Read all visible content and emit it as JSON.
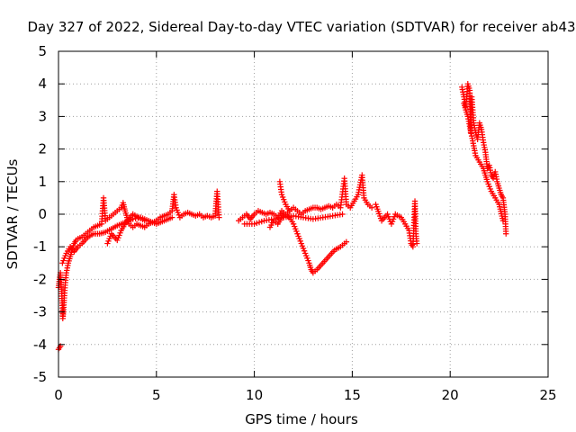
{
  "chart_data": {
    "type": "scatter",
    "title": "Day 327 of 2022, Sidereal Day-to-day VTEC variation (SDTVAR) for receiver ab43",
    "xlabel": "GPS time / hours",
    "ylabel": "SDTVAR / TECUs",
    "xlim": [
      0,
      25
    ],
    "ylim": [
      -5,
      5
    ],
    "xticks": [
      0,
      5,
      10,
      15,
      20,
      25
    ],
    "yticks": [
      -5,
      -4,
      -3,
      -2,
      -1,
      0,
      1,
      2,
      3,
      4,
      5
    ],
    "grid": true,
    "marker": "+",
    "series": [
      {
        "name": "SDTVAR",
        "color": "#ff0000",
        "segments": [
          [
            [
              0.0,
              -4.15
            ],
            [
              0.05,
              -4.1
            ],
            [
              0.1,
              -4.05
            ]
          ],
          [
            [
              0.0,
              -2.25
            ],
            [
              0.05,
              -2.0
            ],
            [
              0.1,
              -1.8
            ],
            [
              0.15,
              -2.3
            ],
            [
              0.2,
              -2.8
            ],
            [
              0.22,
              -3.2
            ],
            [
              0.25,
              -3.0
            ],
            [
              0.3,
              -2.5
            ],
            [
              0.35,
              -2.1
            ],
            [
              0.4,
              -1.8
            ],
            [
              0.5,
              -1.5
            ],
            [
              0.6,
              -1.3
            ],
            [
              0.7,
              -1.1
            ],
            [
              0.8,
              -0.9
            ],
            [
              0.9,
              -0.8
            ],
            [
              1.0,
              -0.75
            ],
            [
              1.2,
              -0.7
            ],
            [
              1.4,
              -0.6
            ],
            [
              1.6,
              -0.5
            ],
            [
              1.8,
              -0.4
            ],
            [
              2.0,
              -0.35
            ],
            [
              2.2,
              -0.3
            ],
            [
              2.3,
              0.5
            ],
            [
              2.4,
              -0.2
            ],
            [
              2.6,
              -0.1
            ],
            [
              2.8,
              0.0
            ],
            [
              3.0,
              0.1
            ],
            [
              3.2,
              0.2
            ],
            [
              3.3,
              0.35
            ],
            [
              3.4,
              0.1
            ],
            [
              3.6,
              -0.3
            ],
            [
              3.8,
              -0.4
            ],
            [
              4.0,
              -0.3
            ],
            [
              4.2,
              -0.35
            ],
            [
              4.4,
              -0.4
            ],
            [
              4.6,
              -0.3
            ],
            [
              4.8,
              -0.25
            ],
            [
              5.0,
              -0.2
            ],
            [
              5.2,
              -0.1
            ],
            [
              5.4,
              -0.05
            ],
            [
              5.6,
              0.0
            ],
            [
              5.8,
              0.1
            ],
            [
              5.9,
              0.6
            ],
            [
              6.0,
              0.2
            ],
            [
              6.2,
              -0.1
            ],
            [
              6.4,
              0.0
            ],
            [
              6.6,
              0.05
            ],
            [
              6.8,
              0.0
            ],
            [
              7.0,
              -0.05
            ],
            [
              7.2,
              0.0
            ],
            [
              7.4,
              -0.1
            ],
            [
              7.6,
              -0.05
            ],
            [
              7.8,
              -0.1
            ],
            [
              8.0,
              -0.05
            ],
            [
              8.1,
              0.7
            ],
            [
              8.2,
              -0.1
            ]
          ],
          [
            [
              0.2,
              -1.5
            ],
            [
              0.4,
              -1.2
            ],
            [
              0.6,
              -1.0
            ],
            [
              0.8,
              -1.15
            ],
            [
              1.0,
              -1.0
            ],
            [
              1.2,
              -0.9
            ],
            [
              1.5,
              -0.7
            ],
            [
              1.8,
              -0.6
            ],
            [
              2.1,
              -0.6
            ],
            [
              2.4,
              -0.55
            ],
            [
              2.7,
              -0.45
            ],
            [
              3.0,
              -0.35
            ],
            [
              3.4,
              -0.25
            ],
            [
              3.8,
              -0.15
            ],
            [
              4.2,
              -0.1
            ],
            [
              4.6,
              -0.2
            ],
            [
              5.0,
              -0.3
            ],
            [
              5.4,
              -0.2
            ],
            [
              5.8,
              -0.1
            ]
          ],
          [
            [
              2.5,
              -0.9
            ],
            [
              2.7,
              -0.6
            ],
            [
              3.0,
              -0.8
            ],
            [
              3.2,
              -0.5
            ],
            [
              3.5,
              -0.2
            ],
            [
              3.8,
              0.0
            ],
            [
              4.1,
              -0.1
            ],
            [
              4.4,
              -0.2
            ]
          ],
          [
            [
              9.2,
              -0.2
            ],
            [
              9.4,
              -0.1
            ],
            [
              9.6,
              0.0
            ],
            [
              9.8,
              -0.15
            ],
            [
              10.0,
              0.0
            ],
            [
              10.2,
              0.1
            ],
            [
              10.4,
              0.05
            ],
            [
              10.6,
              0.0
            ],
            [
              10.8,
              0.05
            ],
            [
              11.0,
              0.0
            ],
            [
              11.2,
              -0.1
            ],
            [
              11.4,
              0.1
            ],
            [
              11.6,
              0.0
            ],
            [
              11.8,
              0.1
            ],
            [
              12.0,
              0.2
            ],
            [
              12.2,
              0.1
            ],
            [
              12.4,
              0.0
            ],
            [
              12.6,
              0.1
            ],
            [
              12.8,
              0.15
            ],
            [
              13.0,
              0.2
            ],
            [
              13.2,
              0.2
            ],
            [
              13.4,
              0.15
            ],
            [
              13.6,
              0.2
            ],
            [
              13.8,
              0.25
            ],
            [
              14.0,
              0.2
            ],
            [
              14.2,
              0.3
            ],
            [
              14.4,
              0.2
            ],
            [
              14.6,
              1.1
            ],
            [
              14.7,
              0.3
            ],
            [
              14.9,
              0.2
            ],
            [
              15.1,
              0.4
            ],
            [
              15.3,
              0.6
            ],
            [
              15.5,
              1.2
            ],
            [
              15.6,
              0.5
            ],
            [
              15.8,
              0.3
            ],
            [
              16.0,
              0.2
            ]
          ],
          [
            [
              9.5,
              -0.3
            ],
            [
              10.0,
              -0.3
            ],
            [
              10.5,
              -0.2
            ],
            [
              11.0,
              -0.15
            ],
            [
              11.5,
              -0.1
            ],
            [
              12.0,
              -0.05
            ],
            [
              12.5,
              -0.1
            ],
            [
              13.0,
              -0.15
            ],
            [
              13.5,
              -0.1
            ],
            [
              14.0,
              -0.05
            ],
            [
              14.5,
              0.0
            ]
          ],
          [
            [
              10.8,
              -0.4
            ],
            [
              11.0,
              -0.2
            ],
            [
              11.2,
              -0.3
            ],
            [
              11.5,
              0.0
            ],
            [
              11.8,
              -0.1
            ],
            [
              12.0,
              -0.3
            ],
            [
              12.2,
              -0.6
            ],
            [
              12.4,
              -0.9
            ],
            [
              12.6,
              -1.2
            ],
            [
              12.8,
              -1.5
            ],
            [
              12.9,
              -1.7
            ],
            [
              13.0,
              -1.8
            ],
            [
              13.2,
              -1.7
            ],
            [
              13.5,
              -1.5
            ],
            [
              13.8,
              -1.3
            ],
            [
              14.1,
              -1.1
            ],
            [
              14.4,
              -1.0
            ],
            [
              14.7,
              -0.85
            ]
          ],
          [
            [
              11.3,
              1.0
            ],
            [
              11.4,
              0.6
            ],
            [
              11.6,
              0.3
            ],
            [
              11.8,
              0.1
            ]
          ],
          [
            [
              16.2,
              0.3
            ],
            [
              16.5,
              -0.2
            ],
            [
              16.8,
              0.0
            ],
            [
              17.0,
              -0.3
            ],
            [
              17.2,
              0.0
            ],
            [
              17.5,
              -0.1
            ],
            [
              17.7,
              -0.3
            ],
            [
              17.9,
              -0.5
            ],
            [
              18.0,
              -0.9
            ],
            [
              18.1,
              -1.0
            ],
            [
              18.2,
              0.4
            ],
            [
              18.25,
              -0.6
            ],
            [
              18.3,
              -0.9
            ]
          ],
          [
            [
              20.6,
              3.9
            ],
            [
              20.7,
              3.6
            ],
            [
              20.8,
              3.3
            ],
            [
              20.9,
              4.0
            ],
            [
              21.0,
              3.8
            ],
            [
              21.05,
              2.5
            ],
            [
              21.1,
              3.6
            ],
            [
              21.2,
              2.8
            ],
            [
              21.3,
              2.5
            ],
            [
              21.4,
              2.3
            ],
            [
              21.5,
              2.8
            ],
            [
              21.6,
              2.6
            ],
            [
              21.7,
              2.2
            ],
            [
              21.8,
              1.9
            ],
            [
              21.9,
              1.4
            ],
            [
              22.0,
              1.5
            ],
            [
              22.1,
              1.2
            ],
            [
              22.2,
              1.1
            ],
            [
              22.3,
              1.3
            ],
            [
              22.4,
              1.0
            ],
            [
              22.5,
              0.8
            ],
            [
              22.6,
              0.6
            ],
            [
              22.7,
              0.5
            ],
            [
              22.8,
              0.0
            ],
            [
              22.85,
              -0.6
            ]
          ],
          [
            [
              20.7,
              3.4
            ],
            [
              20.9,
              3.0
            ],
            [
              21.1,
              2.4
            ],
            [
              21.3,
              1.8
            ],
            [
              21.5,
              1.6
            ],
            [
              21.7,
              1.4
            ],
            [
              21.9,
              1.0
            ],
            [
              22.1,
              0.7
            ],
            [
              22.3,
              0.5
            ],
            [
              22.5,
              0.3
            ],
            [
              22.7,
              -0.2
            ]
          ]
        ]
      }
    ]
  }
}
